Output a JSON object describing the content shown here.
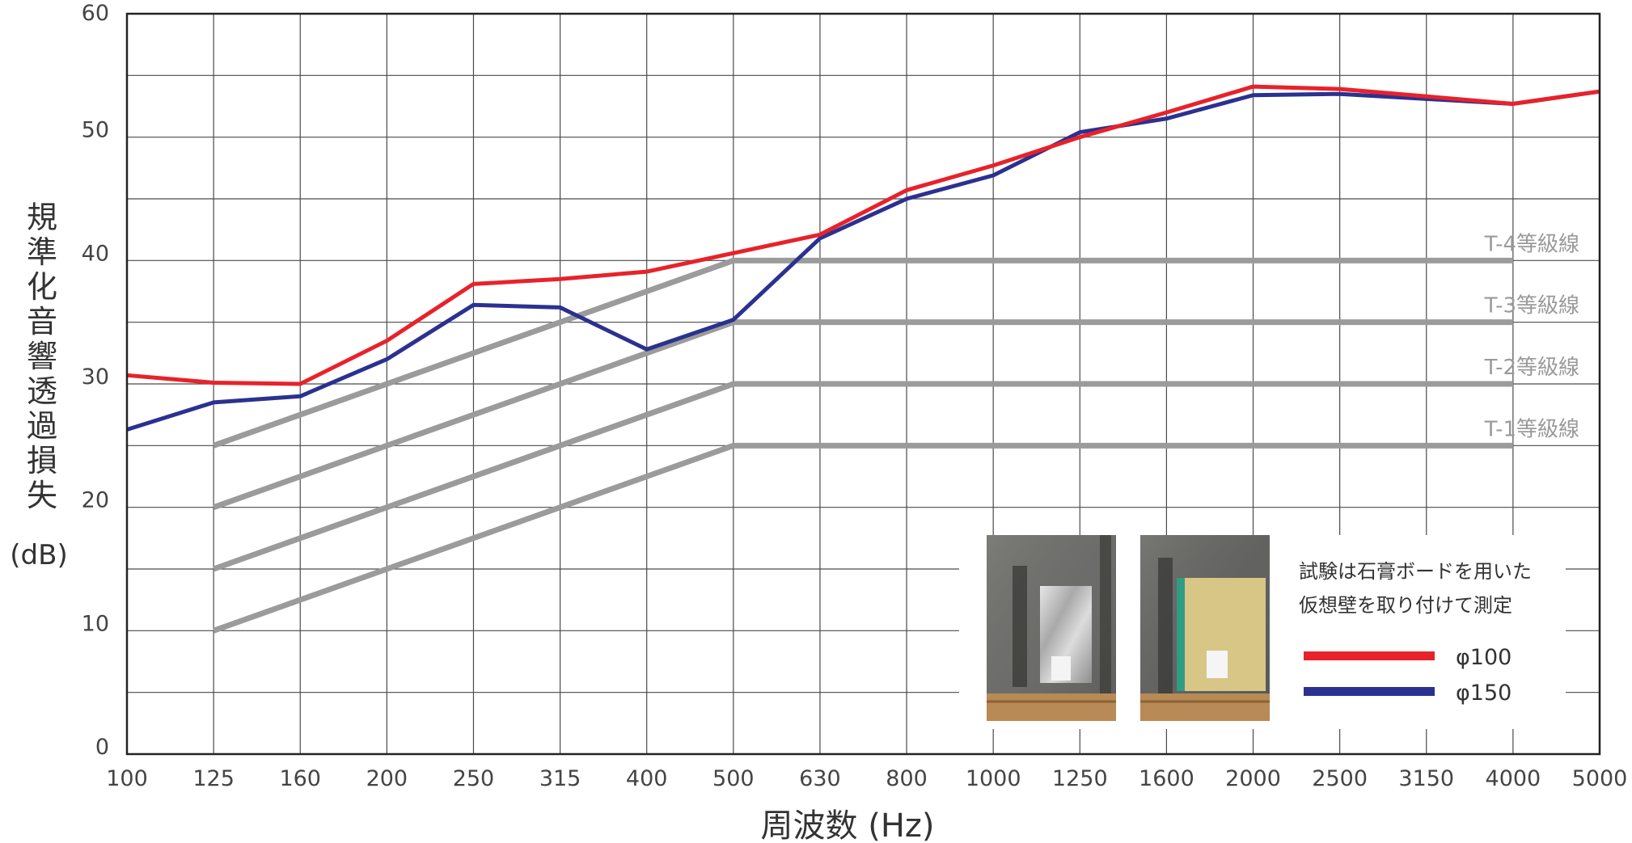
{
  "chart_data": {
    "type": "line",
    "x_categories": [
      "100",
      "125",
      "160",
      "200",
      "250",
      "315",
      "400",
      "500",
      "630",
      "800",
      "1000",
      "1250",
      "1600",
      "2000",
      "2500",
      "3150",
      "4000",
      "5000"
    ],
    "xlabel": "周波数 (Hz)",
    "ylabel_chars": [
      "規",
      "準",
      "化",
      "音",
      "響",
      "透",
      "過",
      "損",
      "失"
    ],
    "ylabel_unit": "(dB)",
    "ylim": [
      0,
      60
    ],
    "y_ticks": [
      "0",
      "10",
      "20",
      "30",
      "40",
      "50",
      "60"
    ],
    "grid": true,
    "series": [
      {
        "name": "φ100",
        "color": "#e8222a",
        "values": [
          30.7,
          30.1,
          30.0,
          33.5,
          38.1,
          38.5,
          39.1,
          40.6,
          42.1,
          45.7,
          47.7,
          50.0,
          52.0,
          54.1,
          53.9,
          53.3,
          52.7,
          53.7
        ]
      },
      {
        "name": "φ150",
        "color": "#2b3190",
        "values": [
          26.3,
          28.5,
          29.0,
          32.0,
          36.4,
          36.2,
          32.8,
          35.2,
          41.8,
          45.0,
          46.9,
          50.4,
          51.5,
          53.4,
          53.5,
          53.1,
          52.7,
          53.7
        ]
      }
    ],
    "grade_lines": [
      {
        "label": "T-1等級線",
        "points": [
          [
            1,
            10
          ],
          [
            7,
            25
          ],
          [
            16,
            25
          ]
        ]
      },
      {
        "label": "T-2等級線",
        "points": [
          [
            1,
            15
          ],
          [
            7,
            30
          ],
          [
            16,
            30
          ]
        ]
      },
      {
        "label": "T-3等級線",
        "points": [
          [
            1,
            20
          ],
          [
            7,
            35
          ],
          [
            16,
            35
          ]
        ]
      },
      {
        "label": "T-4等級線",
        "points": [
          [
            1,
            25
          ],
          [
            7,
            40
          ],
          [
            16,
            40
          ]
        ]
      }
    ],
    "grade_color": "#9b9b9b"
  },
  "note": {
    "line1": "試験は石膏ボードを用いた",
    "line2": "仮想壁を取り付けて測定"
  },
  "legend": [
    {
      "label": "φ100",
      "color": "#e8222a"
    },
    {
      "label": "φ150",
      "color": "#2b3190"
    }
  ],
  "photos": [
    {
      "name": "photo-installed-vent-foil"
    },
    {
      "name": "photo-installed-vent-board"
    }
  ]
}
